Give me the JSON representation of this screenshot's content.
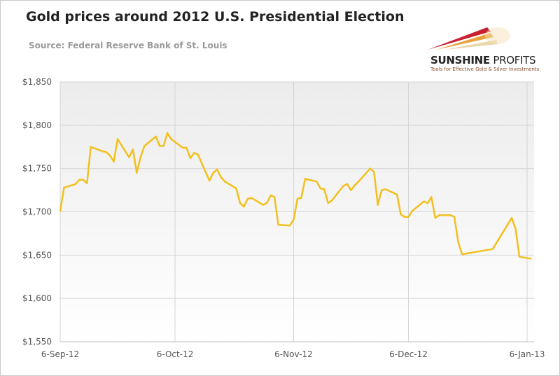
{
  "chart_data": {
    "type": "line",
    "title": "Gold prices around 2012 U.S. Presidential Election",
    "subtitle": "Source: Federal Reserve Bank of St. Louis",
    "xlabel": "",
    "ylabel": "",
    "ylim": [
      1550,
      1850
    ],
    "xlim": [
      "2012-09-06",
      "2013-01-06"
    ],
    "grid": true,
    "line_color": "#f2c01e",
    "y_ticks": [
      "$1,550",
      "$1,600",
      "$1,650",
      "$1,700",
      "$1,750",
      "$1,800",
      "$1,850"
    ],
    "y_tick_values": [
      1550,
      1600,
      1650,
      1700,
      1750,
      1800,
      1850
    ],
    "x_ticks": [
      "6-Sep-12",
      "6-Oct-12",
      "6-Nov-12",
      "6-Dec-12",
      "6-Jan-13"
    ],
    "x_tick_values": [
      "2012-09-06",
      "2012-10-06",
      "2012-11-06",
      "2012-12-06",
      "2013-01-06"
    ],
    "points": [
      [
        "2012-09-06",
        1701
      ],
      [
        "2012-09-07",
        1728
      ],
      [
        "2012-09-10",
        1732
      ],
      [
        "2012-09-11",
        1737
      ],
      [
        "2012-09-12",
        1737
      ],
      [
        "2012-09-13",
        1733
      ],
      [
        "2012-09-14",
        1775
      ],
      [
        "2012-09-17",
        1770
      ],
      [
        "2012-09-18",
        1769
      ],
      [
        "2012-09-19",
        1765
      ],
      [
        "2012-09-20",
        1758
      ],
      [
        "2012-09-21",
        1784
      ],
      [
        "2012-09-24",
        1763
      ],
      [
        "2012-09-25",
        1772
      ],
      [
        "2012-09-26",
        1745
      ],
      [
        "2012-09-27",
        1763
      ],
      [
        "2012-09-28",
        1776
      ],
      [
        "2012-10-01",
        1787
      ],
      [
        "2012-10-02",
        1776
      ],
      [
        "2012-10-03",
        1776
      ],
      [
        "2012-10-04",
        1791
      ],
      [
        "2012-10-05",
        1784
      ],
      [
        "2012-10-08",
        1774
      ],
      [
        "2012-10-09",
        1774
      ],
      [
        "2012-10-10",
        1762
      ],
      [
        "2012-10-11",
        1768
      ],
      [
        "2012-10-12",
        1766
      ],
      [
        "2012-10-15",
        1736
      ],
      [
        "2012-10-16",
        1745
      ],
      [
        "2012-10-17",
        1749
      ],
      [
        "2012-10-18",
        1740
      ],
      [
        "2012-10-19",
        1735
      ],
      [
        "2012-10-22",
        1727
      ],
      [
        "2012-10-23",
        1710
      ],
      [
        "2012-10-24",
        1706
      ],
      [
        "2012-10-25",
        1715
      ],
      [
        "2012-10-26",
        1716
      ],
      [
        "2012-10-29",
        1708
      ],
      [
        "2012-10-30",
        1710
      ],
      [
        "2012-10-31",
        1719
      ],
      [
        "2012-11-01",
        1717
      ],
      [
        "2012-11-02",
        1685
      ],
      [
        "2012-11-05",
        1684
      ],
      [
        "2012-11-06",
        1691
      ],
      [
        "2012-11-07",
        1715
      ],
      [
        "2012-11-08",
        1716
      ],
      [
        "2012-11-09",
        1738
      ],
      [
        "2012-11-12",
        1735
      ],
      [
        "2012-11-13",
        1727
      ],
      [
        "2012-11-14",
        1726
      ],
      [
        "2012-11-15",
        1710
      ],
      [
        "2012-11-16",
        1713
      ],
      [
        "2012-11-19",
        1730
      ],
      [
        "2012-11-20",
        1732
      ],
      [
        "2012-11-21",
        1725
      ],
      [
        "2012-11-22",
        1731
      ],
      [
        "2012-11-23",
        1735
      ],
      [
        "2012-11-26",
        1750
      ],
      [
        "2012-11-27",
        1746
      ],
      [
        "2012-11-28",
        1708
      ],
      [
        "2012-11-29",
        1725
      ],
      [
        "2012-11-30",
        1726
      ],
      [
        "2012-12-03",
        1720
      ],
      [
        "2012-12-04",
        1697
      ],
      [
        "2012-12-05",
        1694
      ],
      [
        "2012-12-06",
        1694
      ],
      [
        "2012-12-07",
        1701
      ],
      [
        "2012-12-10",
        1712
      ],
      [
        "2012-12-11",
        1710
      ],
      [
        "2012-12-12",
        1717
      ],
      [
        "2012-12-13",
        1693
      ],
      [
        "2012-12-14",
        1696
      ],
      [
        "2012-12-17",
        1696
      ],
      [
        "2012-12-18",
        1694
      ],
      [
        "2012-12-19",
        1665
      ],
      [
        "2012-12-20",
        1651
      ],
      [
        "2012-12-28",
        1657
      ],
      [
        "2013-01-02",
        1693
      ],
      [
        "2013-01-03",
        1680
      ],
      [
        "2013-01-04",
        1648
      ],
      [
        "2013-01-07",
        1646
      ]
    ]
  },
  "logo": {
    "name_bold": "SUNSHINE",
    "name_light": " PROFITS",
    "tagline": "Tools for Effective Gold & Silver Investments"
  }
}
